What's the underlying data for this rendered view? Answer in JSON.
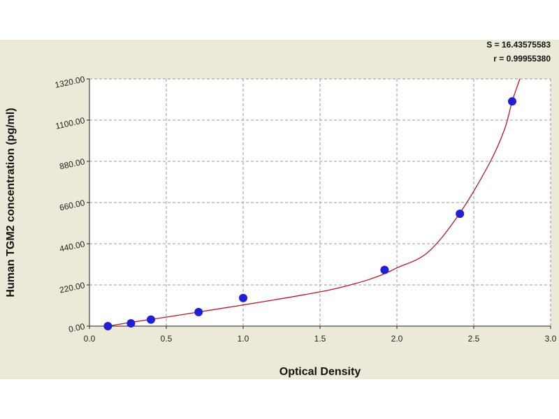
{
  "chart_data": {
    "type": "scatter",
    "xlabel": "Optical Density",
    "ylabel": "Human TGM2 concentration (pg/ml)",
    "xlim": [
      0,
      3.0
    ],
    "ylim": [
      0,
      1320
    ],
    "x_ticks": [
      "0.0",
      "0.5",
      "1.0",
      "1.5",
      "2.0",
      "2.5",
      "3.0"
    ],
    "y_ticks": [
      "0.00",
      "220.00",
      "440.00",
      "660.00",
      "880.00",
      "1100.00",
      "1320.00"
    ],
    "grid": true,
    "stats": {
      "s_label": "S = 16.43575583",
      "r_label": "r = 0.99955380"
    },
    "series": [
      {
        "kind": "points",
        "color": "#1f1fd6",
        "x": [
          0.12,
          0.27,
          0.4,
          0.71,
          1.0,
          1.92,
          2.41,
          2.75
        ],
        "y": [
          0,
          15,
          35,
          75,
          150,
          300,
          600,
          1200
        ]
      },
      {
        "kind": "fitted-curve",
        "color": "#b3192a",
        "x": [
          0.12,
          0.3,
          0.5,
          0.7,
          0.9,
          1.0,
          1.2,
          1.4,
          1.6,
          1.8,
          1.92,
          2.0,
          2.2,
          2.4,
          2.6,
          2.7,
          2.75,
          2.8
        ],
        "y": [
          0,
          24,
          48,
          74,
          100,
          113,
          140,
          168,
          200,
          244,
          280,
          311,
          393,
          592,
          866,
          1050,
          1200,
          1320
        ]
      }
    ]
  }
}
